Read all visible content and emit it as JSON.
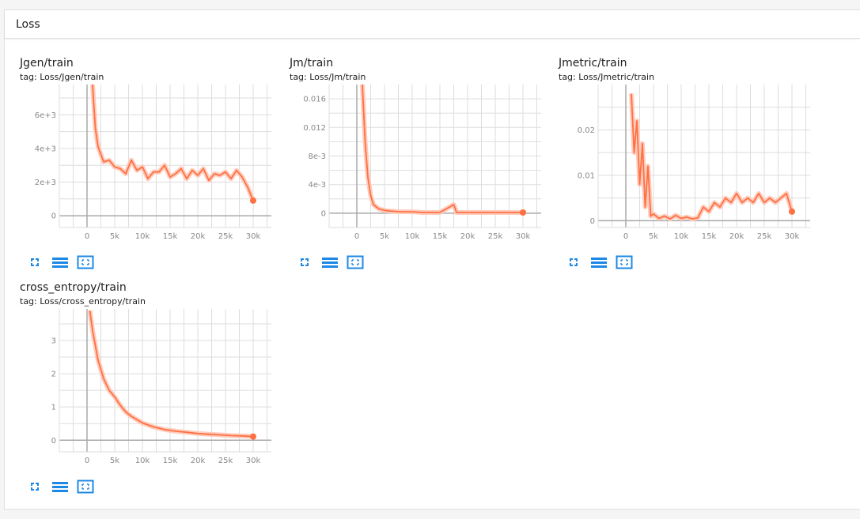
{
  "section": {
    "title": "Loss"
  },
  "toolbar": {
    "fullscreen_icon": "fullscreen-icon",
    "data_icon": "table-list-icon",
    "fit_icon": "fit-domain-icon"
  },
  "colors": {
    "line": "#ff7043",
    "line_light": "#ffccbc",
    "grid": "#dddddd",
    "axis": "#aaaaaa",
    "icon": "#1e88e5"
  },
  "charts": [
    {
      "title": "Jgen/train",
      "tag": "tag: Loss/Jgen/train"
    },
    {
      "title": "Jm/train",
      "tag": "tag: Loss/Jm/train"
    },
    {
      "title": "Jmetric/train",
      "tag": "tag: Loss/Jmetric/train"
    },
    {
      "title": "cross_entropy/train",
      "tag": "tag: Loss/cross_entropy/train"
    }
  ],
  "chart_data": [
    {
      "type": "line",
      "title": "Jgen/train",
      "xticks": [
        "0",
        "5k",
        "10k",
        "15k",
        "20k",
        "25k",
        "30k"
      ],
      "yticks": [
        "0",
        "2e+3",
        "4e+3",
        "6e+3"
      ],
      "xlim": [
        -5000,
        35000
      ],
      "ylim": [
        -700,
        7800
      ],
      "series": [
        {
          "x": [
            1000,
            1500,
            2000,
            3000,
            4000,
            5000,
            6000,
            7000,
            8000,
            9000,
            10000,
            11000,
            12000,
            13000,
            14000,
            15000,
            16000,
            17000,
            18000,
            19000,
            20000,
            21000,
            22000,
            23000,
            24000,
            25000,
            26000,
            27000,
            28000,
            29000,
            30000
          ],
          "y": [
            7800,
            5200,
            4100,
            3200,
            3300,
            2900,
            2800,
            2500,
            3300,
            2700,
            2900,
            2200,
            2600,
            2600,
            3000,
            2300,
            2500,
            2800,
            2200,
            2700,
            2400,
            2800,
            2100,
            2500,
            2400,
            2600,
            2200,
            2700,
            2300,
            1700,
            900
          ]
        }
      ]
    },
    {
      "type": "line",
      "title": "Jm/train",
      "xticks": [
        "0",
        "5k",
        "10k",
        "15k",
        "20k",
        "25k",
        "30k"
      ],
      "yticks": [
        "0",
        "4e-3",
        "8e-3",
        "0.012",
        "0.016"
      ],
      "xlim": [
        -5000,
        35000
      ],
      "ylim": [
        -0.002,
        0.018
      ],
      "series": [
        {
          "x": [
            1000,
            1500,
            2000,
            2500,
            3000,
            4000,
            5000,
            6000,
            8000,
            10000,
            12000,
            15000,
            17500,
            18000,
            20000,
            25000,
            30000
          ],
          "y": [
            0.018,
            0.01,
            0.005,
            0.0025,
            0.0012,
            0.0006,
            0.0004,
            0.0003,
            0.0002,
            0.0002,
            0.0001,
            0.0001,
            0.0012,
            0.0001,
            0.0001,
            0.0001,
            0.0001
          ]
        }
      ]
    },
    {
      "type": "line",
      "title": "Jmetric/train",
      "xticks": [
        "0",
        "5k",
        "10k",
        "15k",
        "20k",
        "25k",
        "30k"
      ],
      "yticks": [
        "0",
        "0.01",
        "0.02"
      ],
      "xlim": [
        -5000,
        35000
      ],
      "ylim": [
        -0.0015,
        0.03
      ],
      "series": [
        {
          "x": [
            1000,
            1500,
            2000,
            2500,
            3000,
            3500,
            4000,
            4500,
            5000,
            6000,
            7000,
            8000,
            9000,
            10000,
            11000,
            12000,
            13000,
            14000,
            15000,
            16000,
            17000,
            18000,
            19000,
            20000,
            21000,
            22000,
            23000,
            24000,
            25000,
            26000,
            27000,
            28000,
            29000,
            30000
          ],
          "y": [
            0.028,
            0.015,
            0.022,
            0.008,
            0.017,
            0.003,
            0.012,
            0.001,
            0.0015,
            0.0005,
            0.001,
            0.0004,
            0.0012,
            0.0005,
            0.0008,
            0.0004,
            0.0006,
            0.003,
            0.002,
            0.004,
            0.003,
            0.005,
            0.004,
            0.006,
            0.004,
            0.005,
            0.004,
            0.006,
            0.004,
            0.005,
            0.004,
            0.005,
            0.006,
            0.002
          ]
        }
      ]
    },
    {
      "type": "line",
      "title": "cross_entropy/train",
      "xticks": [
        "0",
        "5k",
        "10k",
        "15k",
        "20k",
        "25k",
        "30k"
      ],
      "yticks": [
        "0",
        "1",
        "2",
        "3"
      ],
      "xlim": [
        -5000,
        35000
      ],
      "ylim": [
        -0.35,
        3.95
      ],
      "series": [
        {
          "x": [
            500,
            1000,
            2000,
            3000,
            4000,
            5000,
            6000,
            7000,
            8000,
            10000,
            12000,
            14000,
            16000,
            18000,
            20000,
            22000,
            24000,
            26000,
            28000,
            30000
          ],
          "y": [
            3.9,
            3.3,
            2.4,
            1.85,
            1.5,
            1.3,
            1.05,
            0.85,
            0.72,
            0.52,
            0.4,
            0.32,
            0.27,
            0.24,
            0.2,
            0.18,
            0.16,
            0.14,
            0.13,
            0.11
          ]
        }
      ]
    }
  ]
}
